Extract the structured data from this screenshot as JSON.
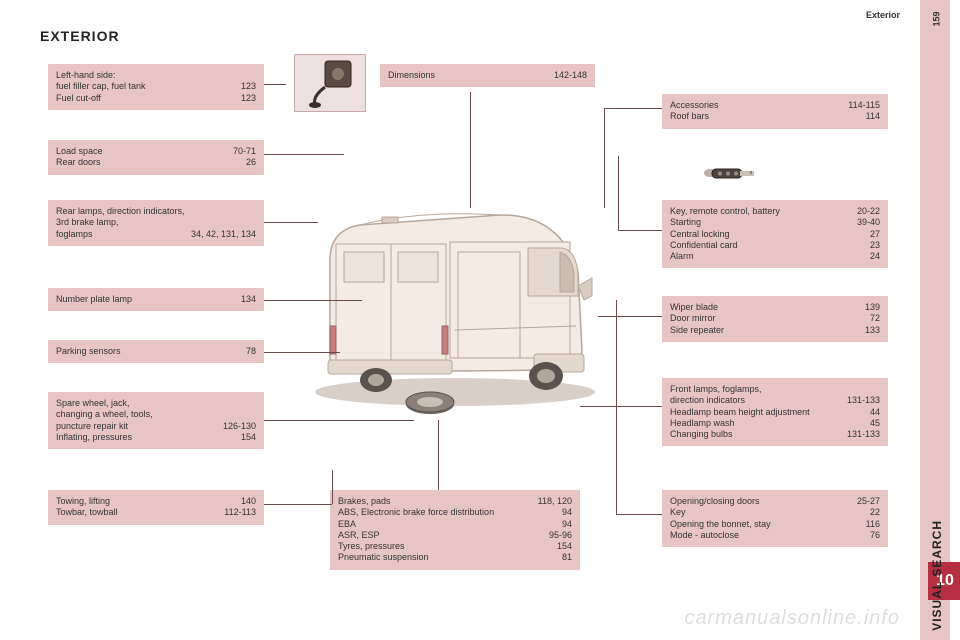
{
  "page_title": "EXTERIOR",
  "section_label": "Exterior",
  "page_number": "159",
  "visual_search": "VISUAL SEARCH",
  "tab_number": "10",
  "watermark": "carmanualsonline.info",
  "boxes": {
    "fuel": {
      "rows": [
        {
          "l": "Left-hand side:",
          "r": ""
        },
        {
          "l": "fuel filler cap, fuel tank",
          "r": "123"
        },
        {
          "l": "Fuel cut-off",
          "r": "123"
        }
      ]
    },
    "load": {
      "rows": [
        {
          "l": "Load space",
          "r": "70-71"
        },
        {
          "l": "Rear doors",
          "r": "26"
        }
      ]
    },
    "rear_lamps": {
      "rows": [
        {
          "l": "Rear lamps, direction indicators,",
          "r": ""
        },
        {
          "l": "3rd brake lamp,",
          "r": ""
        },
        {
          "l": "foglamps",
          "r": "34, 42, 131, 134"
        }
      ]
    },
    "number_plate": {
      "rows": [
        {
          "l": "Number plate lamp",
          "r": "134"
        }
      ]
    },
    "parking": {
      "rows": [
        {
          "l": "Parking sensors",
          "r": "78"
        }
      ]
    },
    "spare": {
      "rows": [
        {
          "l": "Spare wheel, jack,",
          "r": ""
        },
        {
          "l": "changing a wheel, tools,",
          "r": ""
        },
        {
          "l": "puncture repair kit",
          "r": "126-130"
        },
        {
          "l": "Inflating, pressures",
          "r": "154"
        }
      ]
    },
    "towing": {
      "rows": [
        {
          "l": "Towing, lifting",
          "r": "140"
        },
        {
          "l": "Towbar, towball",
          "r": "112-113"
        }
      ]
    },
    "dimensions": {
      "rows": [
        {
          "l": "Dimensions",
          "r": "142-148"
        }
      ]
    },
    "brakes": {
      "rows": [
        {
          "l": "Brakes, pads",
          "r": "118, 120"
        },
        {
          "l": "ABS, Electronic brake force distribution",
          "r": "94"
        },
        {
          "l": "EBA",
          "r": "94"
        },
        {
          "l": "ASR, ESP",
          "r": "95-96"
        },
        {
          "l": "Tyres, pressures",
          "r": "154"
        },
        {
          "l": "Pneumatic suspension",
          "r": "81"
        }
      ]
    },
    "accessories": {
      "rows": [
        {
          "l": "Accessories",
          "r": "114-115"
        },
        {
          "l": "Roof bars",
          "r": "114"
        }
      ]
    },
    "key": {
      "rows": [
        {
          "l": "Key, remote control, battery",
          "r": "20-22"
        },
        {
          "l": "Starting",
          "r": "39-40"
        },
        {
          "l": "Central locking",
          "r": "27"
        },
        {
          "l": "Confidential card",
          "r": "23"
        },
        {
          "l": "Alarm",
          "r": "24"
        }
      ]
    },
    "wiper": {
      "rows": [
        {
          "l": "Wiper blade",
          "r": "139"
        },
        {
          "l": "Door mirror",
          "r": "72"
        },
        {
          "l": "Side repeater",
          "r": "133"
        }
      ]
    },
    "front_lamps": {
      "rows": [
        {
          "l": "Front lamps, foglamps,",
          "r": ""
        },
        {
          "l": "direction indicators",
          "r": "131-133"
        },
        {
          "l": "Headlamp beam height adjustment",
          "r": "44"
        },
        {
          "l": "Headlamp wash",
          "r": "45"
        },
        {
          "l": "Changing bulbs",
          "r": "131-133"
        }
      ]
    },
    "opening": {
      "rows": [
        {
          "l": "Opening/closing doors",
          "r": "25-27"
        },
        {
          "l": "Key",
          "r": "22"
        },
        {
          "l": "Opening the bonnet, stay",
          "r": "116"
        },
        {
          "l": "Mode - autoclose",
          "r": "76"
        }
      ]
    }
  },
  "styling": {
    "box_bg": "#e8c5c5",
    "accent": "#b52f41",
    "van_body": "#f3ebe4",
    "van_outline": "#b7a79a",
    "leader_color": "#6b4a4a"
  }
}
